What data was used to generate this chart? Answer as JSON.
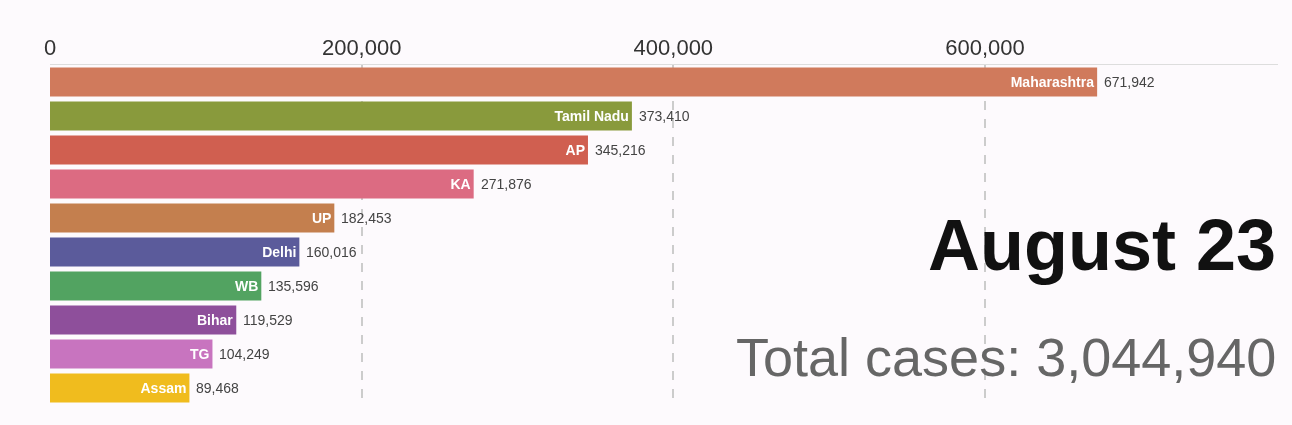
{
  "chart_data": {
    "type": "bar",
    "orientation": "horizontal",
    "categories": [
      "Maharashtra",
      "Tamil Nadu",
      "AP",
      "KA",
      "UP",
      "Delhi",
      "WB",
      "Bihar",
      "TG",
      "Assam"
    ],
    "values": [
      671942,
      373410,
      345216,
      271876,
      182453,
      160016,
      135596,
      119529,
      104249,
      89468
    ],
    "colors": [
      "#d07a5c",
      "#899a3c",
      "#d05f50",
      "#dc6b82",
      "#c47f4e",
      "#5b5b9b",
      "#52a361",
      "#8e4f9b",
      "#c874bf",
      "#f0bc1e"
    ],
    "value_labels": [
      "671,942",
      "373,410",
      "345,216",
      "271,876",
      "182,453",
      "160,016",
      "135,596",
      "119,529",
      "104,249",
      "89,468"
    ],
    "xlim": [
      0,
      788000
    ],
    "xticks": [
      0,
      {
        "value": 200000,
        "label": "200,000"
      },
      {
        "value": 400000,
        "label": "400,000"
      },
      {
        "value": 600000,
        "label": "600,000"
      }
    ],
    "grid": "x",
    "tick_labels": "x",
    "annotations": [
      "August 23",
      "Total cases: 3,044,940"
    ]
  }
}
